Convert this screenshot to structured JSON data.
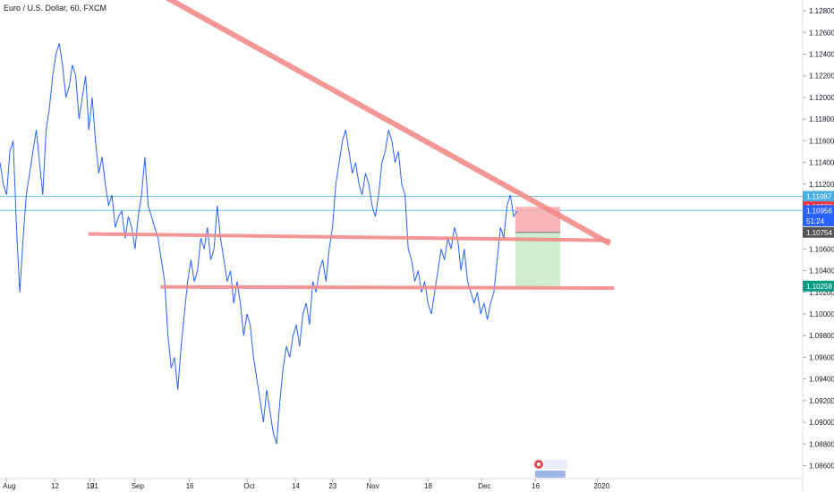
{
  "header": {
    "title": "Euro / U.S. Dollar, 60, FXCM"
  },
  "chart_data": {
    "type": "line",
    "title": "Euro / U.S. Dollar, 60, FXCM",
    "xlabel": "",
    "ylabel": "",
    "ylim": [
      1.0848,
      1.129
    ],
    "y_ticks": [
      "1.12800",
      "1.12600",
      "1.12400",
      "1.12200",
      "1.12000",
      "1.11800",
      "1.11600",
      "1.11400",
      "1.11200",
      "1.10600",
      "1.10400",
      "1.10200",
      "1.10000",
      "1.09800",
      "1.09600",
      "1.09400",
      "1.09200",
      "1.09000",
      "1.08800",
      "1.08600"
    ],
    "x_ticks": [
      "Aug",
      "12",
      "19",
      "21",
      "Sep",
      "16",
      "Oct",
      "14",
      "23",
      "Nov",
      "18",
      "Dec",
      "16",
      "2020"
    ],
    "grid": false,
    "legend": "none",
    "series": [
      {
        "values": [
          1.114,
          1.112,
          1.111,
          1.115,
          1.116,
          1.108,
          1.102,
          1.107,
          1.111,
          1.113,
          1.115,
          1.117,
          1.114,
          1.111,
          1.117,
          1.119,
          1.122,
          1.124,
          1.125,
          1.123,
          1.12,
          1.121,
          1.123,
          1.122,
          1.118,
          1.12,
          1.122,
          1.117,
          1.12,
          1.116,
          1.113,
          1.1145,
          1.112,
          1.11,
          1.111,
          1.108,
          1.109,
          1.1095,
          1.107,
          1.109,
          1.108,
          1.106,
          1.109,
          1.111,
          1.1145,
          1.11,
          1.109,
          1.108,
          1.107,
          1.105,
          1.103,
          1.098,
          1.095,
          1.096,
          1.093,
          1.097,
          1.1,
          1.103,
          1.105,
          1.103,
          1.104,
          1.107,
          1.106,
          1.108,
          1.105,
          1.106,
          1.11,
          1.107,
          1.105,
          1.103,
          1.104,
          1.101,
          1.103,
          1.101,
          1.098,
          1.1,
          1.099,
          1.096,
          1.094,
          1.092,
          1.09,
          1.093,
          1.091,
          1.089,
          1.088,
          1.092,
          1.095,
          1.097,
          1.096,
          1.098,
          1.099,
          1.097,
          1.1,
          1.101,
          1.099,
          1.103,
          1.102,
          1.104,
          1.105,
          1.103,
          1.106,
          1.108,
          1.112,
          1.114,
          1.116,
          1.117,
          1.115,
          1.113,
          1.114,
          1.112,
          1.111,
          1.113,
          1.112,
          1.11,
          1.109,
          1.111,
          1.114,
          1.115,
          1.117,
          1.116,
          1.114,
          1.115,
          1.112,
          1.111,
          1.106,
          1.105,
          1.103,
          1.104,
          1.102,
          1.103,
          1.101,
          1.1,
          1.102,
          1.104,
          1.106,
          1.105,
          1.107,
          1.106,
          1.108,
          1.107,
          1.104,
          1.106,
          1.103,
          1.102,
          1.101,
          1.102,
          1.1,
          1.101,
          1.0995,
          1.101,
          1.102,
          1.105,
          1.108,
          1.107,
          1.11,
          1.111,
          1.109,
          1.1095
        ]
      }
    ],
    "lines": [
      {
        "name": "Descending trendline",
        "from": [
          0.14,
          1.132
        ],
        "to": [
          0.76,
          1.1065
        ]
      },
      {
        "name": "Support 1",
        "from": [
          0.11,
          1.1074
        ],
        "to": [
          0.76,
          1.1068
        ]
      },
      {
        "name": "Support 2",
        "from": [
          0.2,
          1.1025
        ],
        "to": [
          0.765,
          1.1024
        ]
      },
      {
        "name": "Horizontal 1.11087",
        "y": 1.11087
      },
      {
        "name": "Horizontal 1.10956",
        "y": 1.10956
      }
    ],
    "position": {
      "entry": 1.10754,
      "stop": 1.1099,
      "target": 1.10258,
      "x_start": 0.642,
      "x_end": 0.698
    },
    "price_labels": [
      {
        "name": "level-1",
        "text": "1.11087",
        "value": 1.11087,
        "color": "#4aaee0"
      },
      {
        "name": "stop",
        "text": "1.10990",
        "value": 1.1099,
        "color": "#f23645"
      },
      {
        "name": "last",
        "text": "1.10956",
        "value": 1.10956,
        "color": "#2962ff"
      },
      {
        "name": "countdown",
        "text": "51:24",
        "value": 1.1086,
        "color": "#2962ff"
      },
      {
        "name": "entry",
        "text": "1.10754",
        "value": 1.10754,
        "color": "#555555"
      },
      {
        "name": "target",
        "text": "1.10258",
        "value": 1.10258,
        "color": "#089981"
      }
    ],
    "colors": {
      "price": "#2962ff",
      "trendline": "#f28b8b",
      "stop_zone": "#f8a9ad",
      "target_zone": "#c9ecc9"
    }
  }
}
